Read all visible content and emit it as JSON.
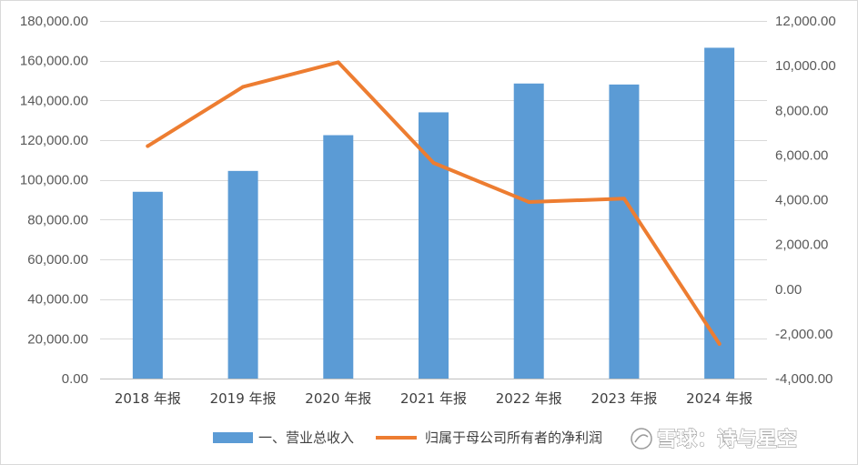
{
  "chart_data": {
    "type": "bar+line",
    "categories": [
      "2018 年报",
      "2019 年报",
      "2020 年报",
      "2021 年报",
      "2022 年报",
      "2023 年报",
      "2024 年报"
    ],
    "series": [
      {
        "name": "一、营业总收入",
        "type": "bar",
        "axis": "left",
        "color": "#5b9bd5",
        "values": [
          94000,
          104500,
          122500,
          134000,
          148500,
          148000,
          166500
        ]
      },
      {
        "name": "归属于母公司所有者的净利润",
        "type": "line",
        "axis": "right",
        "color": "#ed7d31",
        "values": [
          6400,
          9050,
          10150,
          5650,
          3900,
          4050,
          -2450
        ]
      }
    ],
    "y_left": {
      "min": 0,
      "max": 180000,
      "ticks": [
        "0.00",
        "20,000.00",
        "40,000.00",
        "60,000.00",
        "80,000.00",
        "100,000.00",
        "120,000.00",
        "140,000.00",
        "160,000.00",
        "180,000.00"
      ]
    },
    "y_right": {
      "min": -4000,
      "max": 12000,
      "ticks": [
        "-4,000.00",
        "-2,000.00",
        "0.00",
        "2,000.00",
        "4,000.00",
        "6,000.00",
        "8,000.00",
        "10,000.00",
        "12,000.00"
      ]
    },
    "grid": true,
    "legend_position": "bottom"
  },
  "watermark": {
    "text": "雪球：诗与星空"
  }
}
